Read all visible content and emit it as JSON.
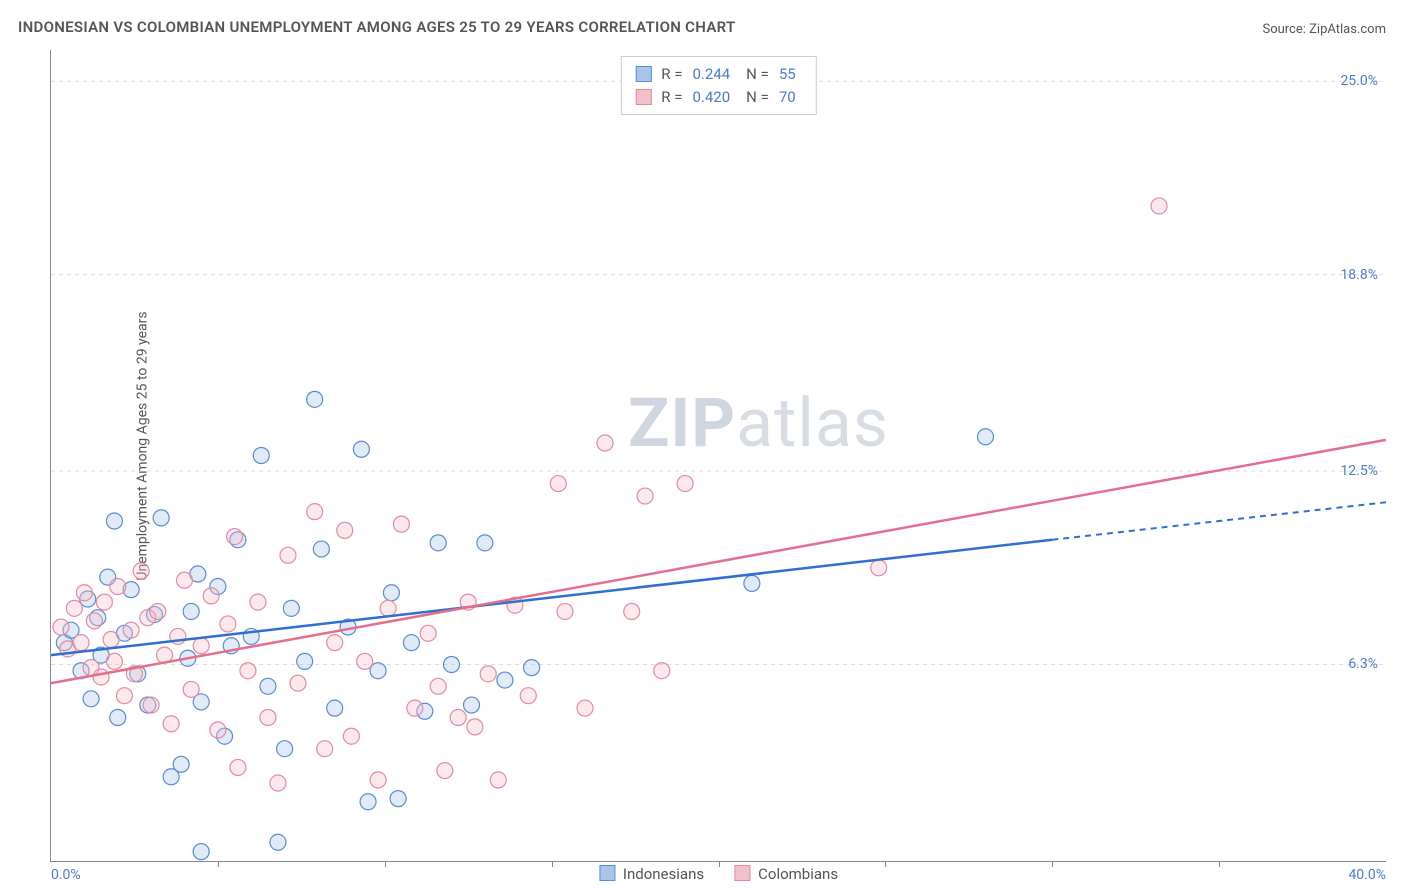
{
  "title": "INDONESIAN VS COLOMBIAN UNEMPLOYMENT AMONG AGES 25 TO 29 YEARS CORRELATION CHART",
  "source_prefix": "Source: ",
  "source_name": "ZipAtlas.com",
  "ylabel": "Unemployment Among Ages 25 to 29 years",
  "watermark_a": "ZIP",
  "watermark_b": "atlas",
  "chart": {
    "type": "scatter",
    "xlim": [
      0,
      40
    ],
    "ylim": [
      0,
      26
    ],
    "x_tick_step": 5,
    "x_min_label": "0.0%",
    "x_max_label": "40.0%",
    "y_ticks": [
      {
        "v": 6.3,
        "label": "6.3%"
      },
      {
        "v": 12.5,
        "label": "12.5%"
      },
      {
        "v": 18.8,
        "label": "18.8%"
      },
      {
        "v": 25.0,
        "label": "25.0%"
      }
    ],
    "background_color": "#ffffff",
    "grid_color": "#dddddd",
    "axis_color": "#888888",
    "tick_label_color": "#4a7bd0",
    "marker_radius": 8,
    "series": [
      {
        "key": "indonesians",
        "label": "Indonesians",
        "color_stroke": "#5b8bd4",
        "color_fill": "#a9c5ea",
        "R": "0.244",
        "N": "55",
        "trend": {
          "x1": 0,
          "y1": 6.6,
          "x2": 30,
          "y2": 10.3,
          "dash_to_x": 40,
          "dash_to_y": 11.5,
          "color": "#2f6fd0"
        },
        "points": [
          [
            0.4,
            7.0
          ],
          [
            0.6,
            7.4
          ],
          [
            0.9,
            6.1
          ],
          [
            1.1,
            8.4
          ],
          [
            1.2,
            5.2
          ],
          [
            1.4,
            7.8
          ],
          [
            1.5,
            6.6
          ],
          [
            1.7,
            9.1
          ],
          [
            1.9,
            10.9
          ],
          [
            2.0,
            4.6
          ],
          [
            2.2,
            7.3
          ],
          [
            2.4,
            8.7
          ],
          [
            2.6,
            6.0
          ],
          [
            2.9,
            5.0
          ],
          [
            3.1,
            7.9
          ],
          [
            3.3,
            11.0
          ],
          [
            3.6,
            2.7
          ],
          [
            3.9,
            3.1
          ],
          [
            4.1,
            6.5
          ],
          [
            4.2,
            8.0
          ],
          [
            4.4,
            9.2
          ],
          [
            4.5,
            5.1
          ],
          [
            4.5,
            0.3
          ],
          [
            5.0,
            8.8
          ],
          [
            5.2,
            4.0
          ],
          [
            5.4,
            6.9
          ],
          [
            5.6,
            10.3
          ],
          [
            6.0,
            7.2
          ],
          [
            6.3,
            13.0
          ],
          [
            6.5,
            5.6
          ],
          [
            6.8,
            0.6
          ],
          [
            7.0,
            3.6
          ],
          [
            7.2,
            8.1
          ],
          [
            7.6,
            6.4
          ],
          [
            7.9,
            14.8
          ],
          [
            8.1,
            10.0
          ],
          [
            8.5,
            4.9
          ],
          [
            8.9,
            7.5
          ],
          [
            9.3,
            13.2
          ],
          [
            9.5,
            1.9
          ],
          [
            9.8,
            6.1
          ],
          [
            10.2,
            8.6
          ],
          [
            10.4,
            2.0
          ],
          [
            10.8,
            7.0
          ],
          [
            11.2,
            4.8
          ],
          [
            11.6,
            10.2
          ],
          [
            12.0,
            6.3
          ],
          [
            12.6,
            5.0
          ],
          [
            13.0,
            10.2
          ],
          [
            13.6,
            5.8
          ],
          [
            14.4,
            6.2
          ],
          [
            21.0,
            8.9
          ],
          [
            28.0,
            13.6
          ]
        ]
      },
      {
        "key": "colombians",
        "label": "Colombians",
        "color_stroke": "#e58aa0",
        "color_fill": "#f3bfca",
        "R": "0.420",
        "N": "70",
        "trend": {
          "x1": 0,
          "y1": 5.7,
          "x2": 40,
          "y2": 13.5,
          "color": "#e36f8c"
        },
        "points": [
          [
            0.3,
            7.5
          ],
          [
            0.5,
            6.8
          ],
          [
            0.7,
            8.1
          ],
          [
            0.9,
            7.0
          ],
          [
            1.0,
            8.6
          ],
          [
            1.2,
            6.2
          ],
          [
            1.3,
            7.7
          ],
          [
            1.5,
            5.9
          ],
          [
            1.6,
            8.3
          ],
          [
            1.8,
            7.1
          ],
          [
            1.9,
            6.4
          ],
          [
            2.0,
            8.8
          ],
          [
            2.2,
            5.3
          ],
          [
            2.4,
            7.4
          ],
          [
            2.5,
            6.0
          ],
          [
            2.7,
            9.3
          ],
          [
            2.9,
            7.8
          ],
          [
            3.0,
            5.0
          ],
          [
            3.2,
            8.0
          ],
          [
            3.4,
            6.6
          ],
          [
            3.6,
            4.4
          ],
          [
            3.8,
            7.2
          ],
          [
            4.0,
            9.0
          ],
          [
            4.2,
            5.5
          ],
          [
            4.5,
            6.9
          ],
          [
            4.8,
            8.5
          ],
          [
            5.0,
            4.2
          ],
          [
            5.3,
            7.6
          ],
          [
            5.5,
            10.4
          ],
          [
            5.6,
            3.0
          ],
          [
            5.9,
            6.1
          ],
          [
            6.2,
            8.3
          ],
          [
            6.5,
            4.6
          ],
          [
            6.8,
            2.5
          ],
          [
            7.1,
            9.8
          ],
          [
            7.4,
            5.7
          ],
          [
            7.9,
            11.2
          ],
          [
            8.2,
            3.6
          ],
          [
            8.5,
            7.0
          ],
          [
            8.8,
            10.6
          ],
          [
            9.0,
            4.0
          ],
          [
            9.4,
            6.4
          ],
          [
            9.8,
            2.6
          ],
          [
            10.1,
            8.1
          ],
          [
            10.5,
            10.8
          ],
          [
            10.9,
            4.9
          ],
          [
            11.3,
            7.3
          ],
          [
            11.6,
            5.6
          ],
          [
            11.8,
            2.9
          ],
          [
            12.2,
            4.6
          ],
          [
            12.5,
            8.3
          ],
          [
            12.7,
            4.3
          ],
          [
            13.1,
            6.0
          ],
          [
            13.4,
            2.6
          ],
          [
            13.9,
            8.2
          ],
          [
            14.3,
            5.3
          ],
          [
            15.2,
            12.1
          ],
          [
            15.4,
            8.0
          ],
          [
            16.0,
            4.9
          ],
          [
            16.6,
            13.4
          ],
          [
            17.4,
            8.0
          ],
          [
            17.8,
            11.7
          ],
          [
            18.3,
            6.1
          ],
          [
            19.0,
            12.1
          ],
          [
            24.8,
            9.4
          ],
          [
            33.2,
            21.0
          ]
        ]
      }
    ],
    "legend_r_label": "R =",
    "legend_n_label": "N ="
  }
}
